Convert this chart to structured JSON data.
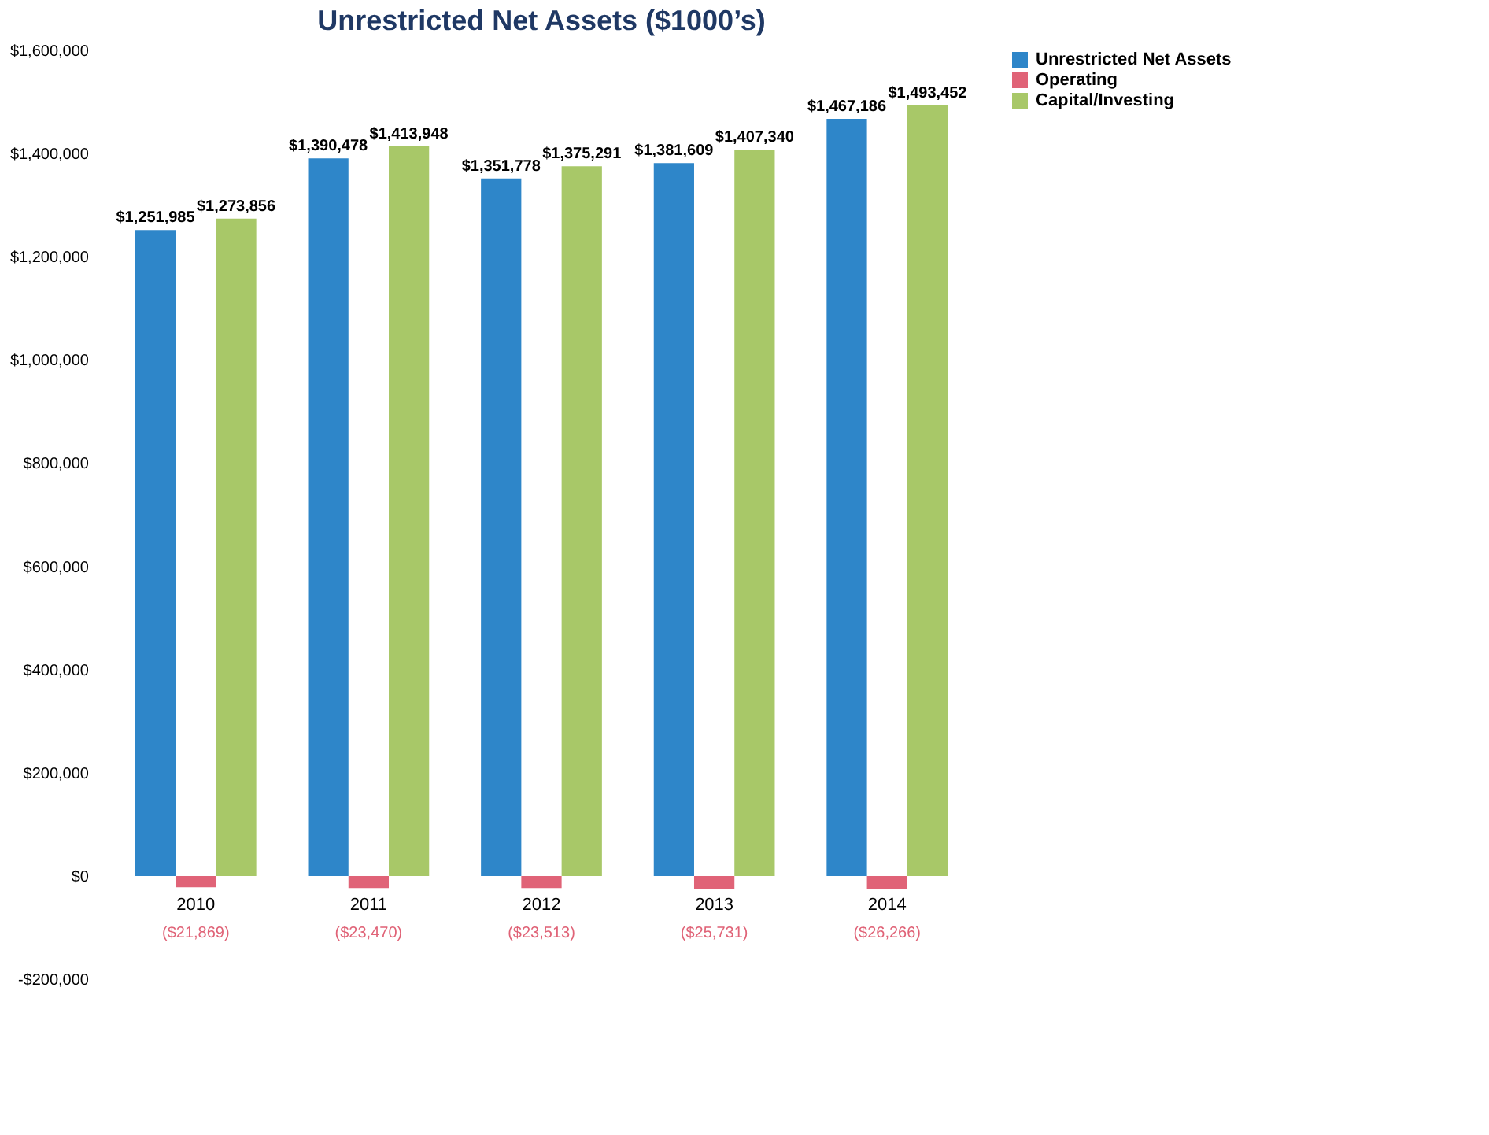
{
  "chart_data": {
    "type": "bar",
    "title": "Unrestricted Net Assets ($1000’s)",
    "categories": [
      "2010",
      "2011",
      "2012",
      "2013",
      "2014"
    ],
    "series": [
      {
        "name": "Unrestricted Net Assets",
        "color": "#2e86c9",
        "values": [
          1251985,
          1390478,
          1351778,
          1381609,
          1467186
        ],
        "value_labels": [
          "$1,251,985",
          "$1,390,478",
          "$1,351,778",
          "$1,381,609",
          "$1,467,186"
        ]
      },
      {
        "name": "Operating",
        "color": "#e06377",
        "values": [
          -21869,
          -23470,
          -23513,
          -25731,
          -26266
        ],
        "value_labels": [
          "($21,869)",
          "($23,470)",
          "($23,513)",
          "($25,731)",
          "($26,266)"
        ]
      },
      {
        "name": "Capital/Investing",
        "color": "#a8c868",
        "values": [
          1273856,
          1413948,
          1375291,
          1407340,
          1493452
        ],
        "value_labels": [
          "$1,273,856",
          "$1,413,948",
          "$1,375,291",
          "$1,407,340",
          "$1,493,452"
        ]
      }
    ],
    "ylim": [
      -200000,
      1600000
    ],
    "yticks": [
      {
        "value": -200000,
        "label": "-$200,000"
      },
      {
        "value": 0,
        "label": "$0"
      },
      {
        "value": 200000,
        "label": "$200,000"
      },
      {
        "value": 400000,
        "label": "$400,000"
      },
      {
        "value": 600000,
        "label": "$600,000"
      },
      {
        "value": 800000,
        "label": "$800,000"
      },
      {
        "value": 1000000,
        "label": "$1,000,000"
      },
      {
        "value": 1200000,
        "label": "$1,200,000"
      },
      {
        "value": 1400000,
        "label": "$1,400,000"
      },
      {
        "value": 1600000,
        "label": "$1,600,000"
      }
    ],
    "grid": false,
    "legend": "right"
  }
}
